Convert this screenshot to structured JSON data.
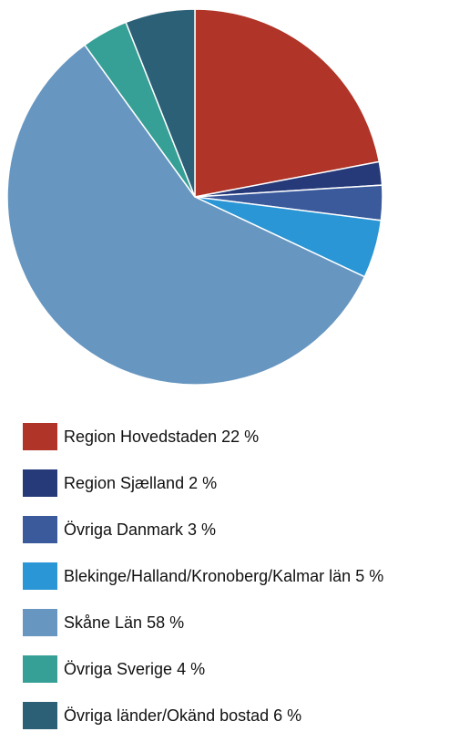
{
  "chart_data": {
    "type": "pie",
    "categories": [
      "Region Hovedstaden",
      "Region Sjælland",
      "Övriga Danmark",
      "Blekinge/Halland/Kronoberg/Kalmar län",
      "Skåne Län",
      "Övriga Sverige",
      "Övriga länder/Okänd bostad"
    ],
    "values": [
      22,
      2,
      3,
      5,
      58,
      4,
      6
    ],
    "value_labels": [
      "22 %",
      "2 %",
      "3 %",
      "5 %",
      "58 %",
      "4 %",
      "6 %"
    ],
    "colors": [
      "#b03427",
      "#263a7a",
      "#3a5a9c",
      "#2b96d5",
      "#6796c0",
      "#36a096",
      "#2c6077"
    ],
    "legend": "bottom"
  }
}
